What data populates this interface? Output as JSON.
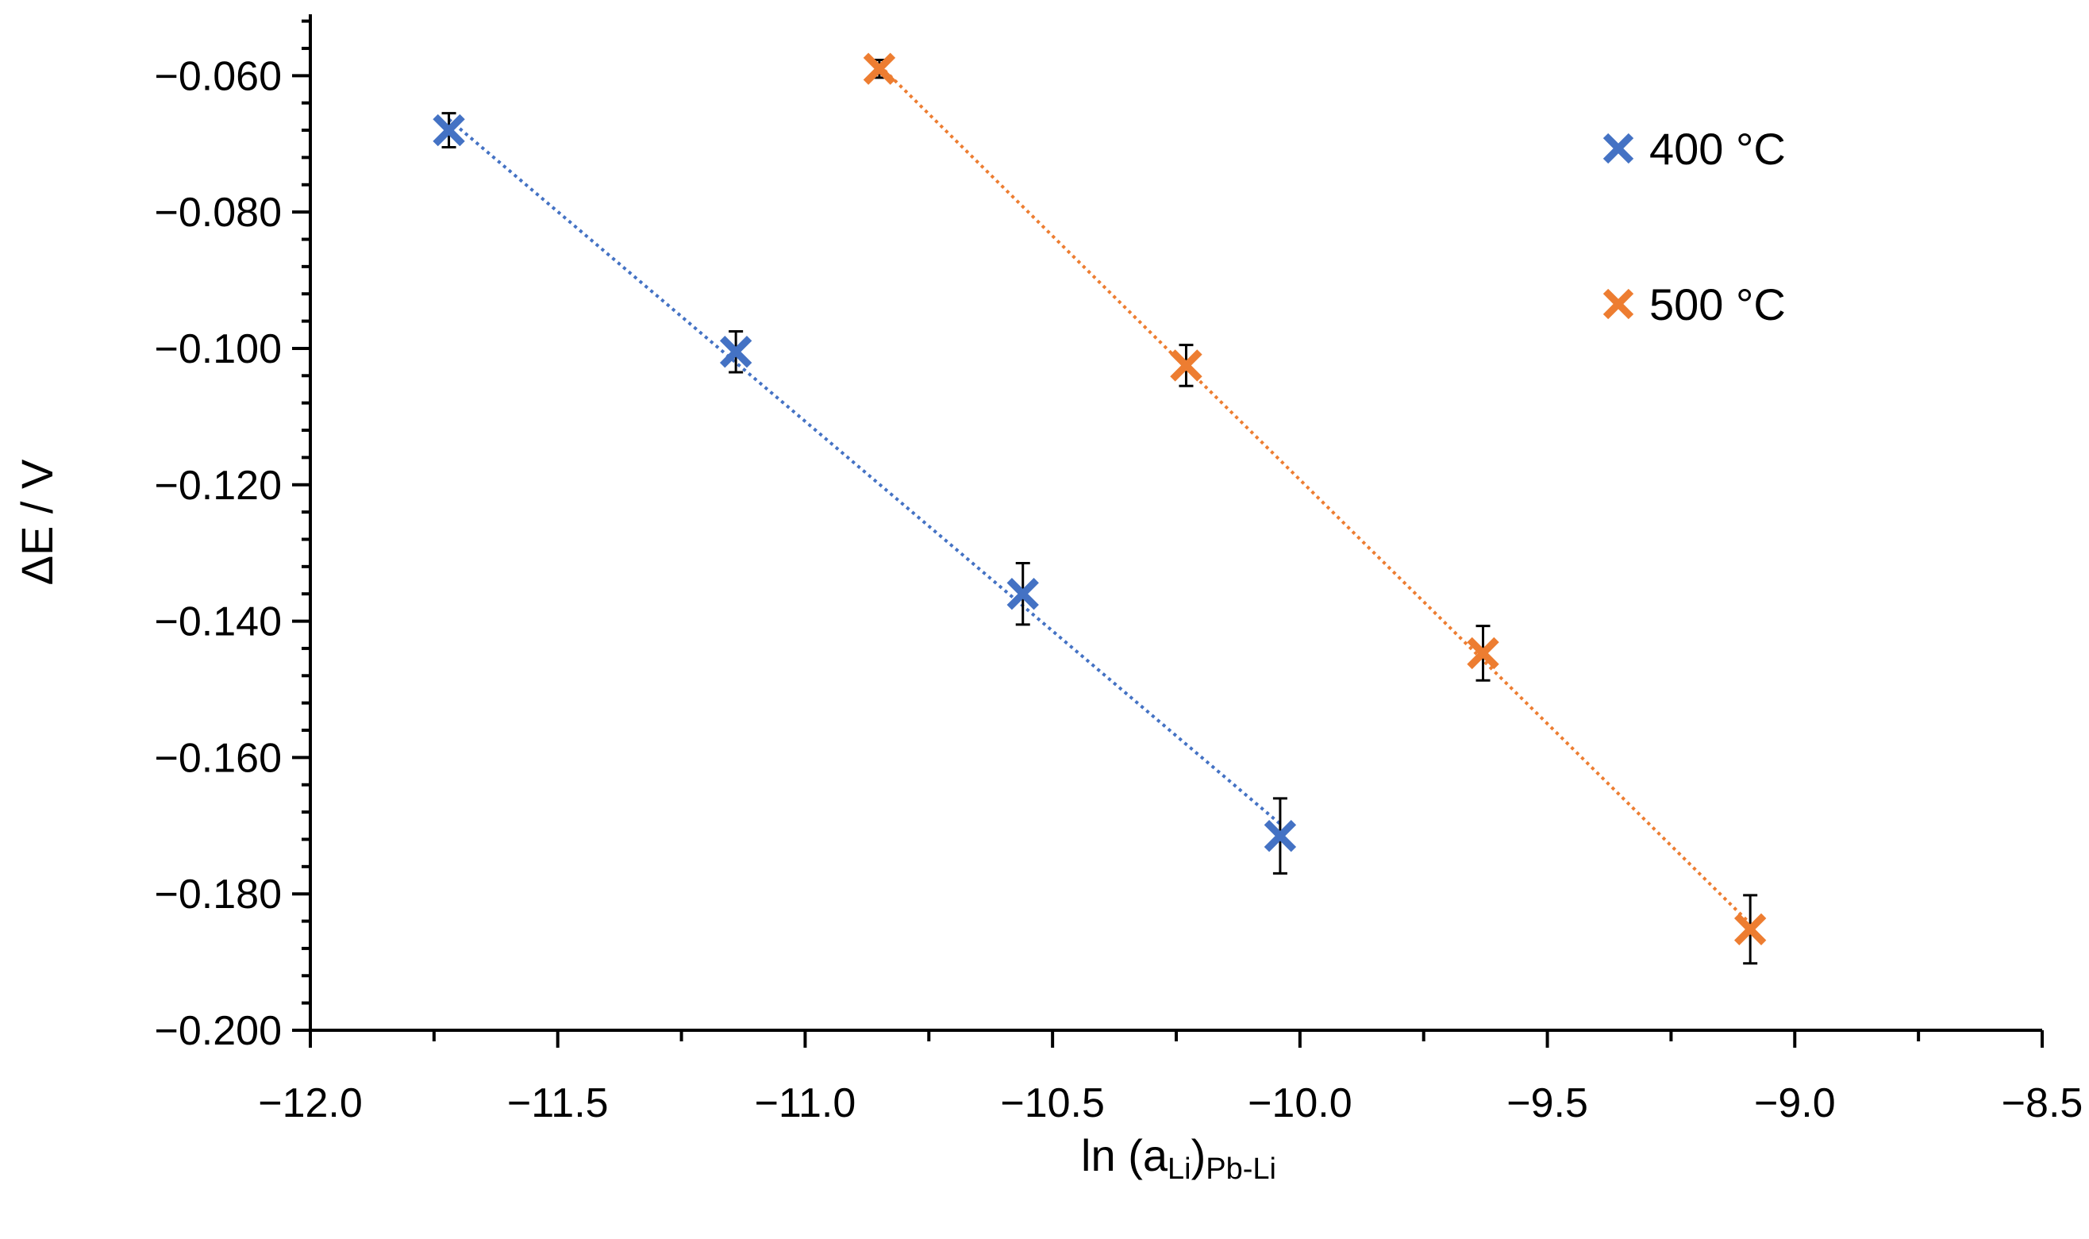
{
  "chart_data": {
    "type": "scatter",
    "title": "",
    "xlabel": {
      "main": "ln (a",
      "sub_li": "Li",
      "close": ")",
      "sub_pbli": "Pb-Li"
    },
    "ylabel": "ΔE / V",
    "xlim": [
      -12.0,
      -8.5
    ],
    "ylim": [
      -0.2,
      -0.051
    ],
    "x_ticks": [
      -12.0,
      -11.5,
      -11.0,
      -10.5,
      -10.0,
      -9.5,
      -9.0,
      -8.5
    ],
    "x_tick_labels": [
      "−12.0",
      "−11.5",
      "−11.0",
      "−10.5",
      "−10.0",
      "−9.5",
      "−9.0",
      "−8.5"
    ],
    "y_ticks": [
      -0.2,
      -0.18,
      -0.16,
      -0.14,
      -0.12,
      -0.1,
      -0.08,
      -0.06
    ],
    "y_tick_labels": [
      "−0.200",
      "−0.180",
      "−0.160",
      "−0.140",
      "−0.120",
      "−0.100",
      "−0.080",
      "−0.060"
    ],
    "y_minor_step": 0.004,
    "x_minor_step": 0.25,
    "grid": false,
    "legend_position": "top-right",
    "series": [
      {
        "name": "400 °C",
        "color": "#4472C4",
        "marker": "x",
        "trendline": "linear-dotted",
        "x": [
          -11.72,
          -11.14,
          -10.56,
          -10.04
        ],
        "y": [
          -0.068,
          -0.1005,
          -0.136,
          -0.1715
        ],
        "err": [
          0.0025,
          0.003,
          0.0045,
          0.0055
        ]
      },
      {
        "name": "500 °C",
        "color": "#ED7D31",
        "marker": "x",
        "trendline": "linear-dotted",
        "x": [
          -10.85,
          -10.23,
          -9.63,
          -9.09
        ],
        "y": [
          -0.059,
          -0.1025,
          -0.1447,
          -0.1852
        ],
        "err": [
          0.0013,
          0.003,
          0.004,
          0.005
        ]
      }
    ],
    "error_bar_color": "#000000"
  }
}
